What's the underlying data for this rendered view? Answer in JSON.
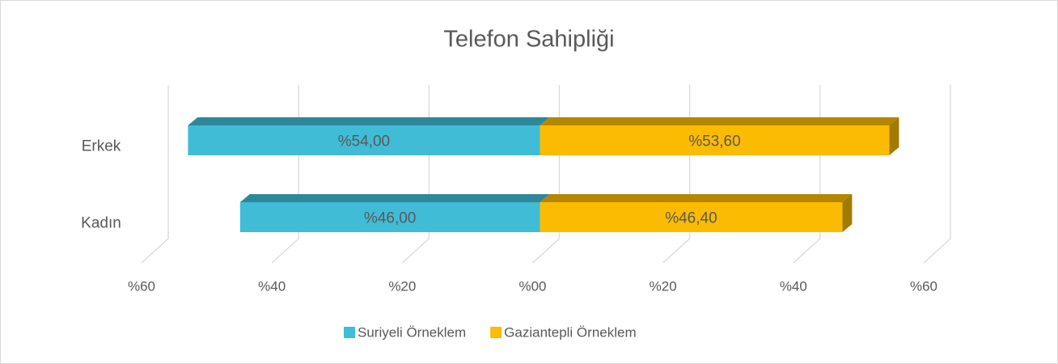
{
  "chart_data": {
    "type": "diverging-bar",
    "title": "Telefon Sahipliği",
    "categories": [
      "Erkek",
      "Kadın"
    ],
    "series": [
      {
        "name": "Suriyeli Örneklem",
        "color": "#41bcd6",
        "values": [
          -54,
          -46
        ],
        "value_labels": [
          "%54,00",
          "%46,00"
        ]
      },
      {
        "name": "Gaziantepli Örneklem",
        "color": "#fbbb00",
        "values": [
          53.6,
          46.4
        ],
        "value_labels": [
          "%53,60",
          "%46,40"
        ]
      }
    ],
    "xlim": [
      -60,
      60
    ],
    "xticks": [
      {
        "value": -60,
        "label": "%60"
      },
      {
        "value": -40,
        "label": "%40"
      },
      {
        "value": -20,
        "label": "%20"
      },
      {
        "value": 0,
        "label": "%00"
      },
      {
        "value": 20,
        "label": "%20"
      },
      {
        "value": 40,
        "label": "%40"
      },
      {
        "value": 60,
        "label": "%60"
      }
    ],
    "grid": true,
    "legend": "bottom"
  }
}
